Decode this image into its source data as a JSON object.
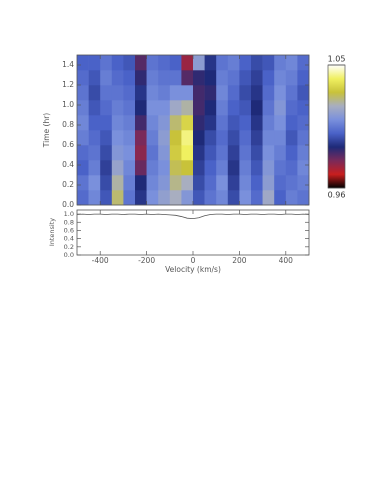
{
  "chart_data": [
    {
      "type": "heatmap",
      "y_label": "Time (hr)",
      "x": [
        -475,
        -425,
        -375,
        -325,
        -275,
        -225,
        -175,
        -125,
        -75,
        -25,
        25,
        75,
        125,
        175,
        225,
        275,
        325,
        375,
        425,
        475
      ],
      "y": [
        0.075,
        0.225,
        0.375,
        0.525,
        0.675,
        0.825,
        0.975,
        1.125,
        1.275,
        1.425
      ],
      "z": [
        [
          1.002,
          1.008,
          0.998,
          1.026,
          1.004,
          0.992,
          1.01,
          1.015,
          1.02,
          1.012,
          0.998,
          1.004,
          1.008,
          0.996,
          1.01,
          1.002,
          1.018,
          1.0,
          1.006,
          1.004
        ],
        [
          1.004,
          1.01,
          0.996,
          1.022,
          1.006,
          0.99,
          1.008,
          1.012,
          1.024,
          1.02,
          0.996,
          1.002,
          1.01,
          0.994,
          1.008,
          1.0,
          1.014,
          1.002,
          1.004,
          1.006
        ],
        [
          1.0,
          1.006,
          0.994,
          1.016,
          1.008,
          0.982,
          1.006,
          1.01,
          1.028,
          1.03,
          0.994,
          1.0,
          1.006,
          0.992,
          1.006,
          0.998,
          1.012,
          1.004,
          1.002,
          1.008
        ],
        [
          1.002,
          1.004,
          0.996,
          1.012,
          1.01,
          0.978,
          1.004,
          1.012,
          1.032,
          1.04,
          0.992,
          0.998,
          1.004,
          0.994,
          1.004,
          0.996,
          1.01,
          1.006,
          1.0,
          1.006
        ],
        [
          1.006,
          1.002,
          0.998,
          1.01,
          1.008,
          0.98,
          1.006,
          1.014,
          1.03,
          1.042,
          0.99,
          0.996,
          1.002,
          0.996,
          1.002,
          0.994,
          1.008,
          1.008,
          0.998,
          1.004
        ],
        [
          1.008,
          1.0,
          1.0,
          1.008,
          1.006,
          0.986,
          1.008,
          1.012,
          1.026,
          1.034,
          0.988,
          0.992,
          1.004,
          0.998,
          1.0,
          0.992,
          1.006,
          1.01,
          1.0,
          1.002
        ],
        [
          1.006,
          0.998,
          1.002,
          1.006,
          1.004,
          0.99,
          1.01,
          1.01,
          1.018,
          1.022,
          0.986,
          0.99,
          1.006,
          1.0,
          0.998,
          0.99,
          1.004,
          1.012,
          1.002,
          1.0
        ],
        [
          1.004,
          0.996,
          1.004,
          1.004,
          1.002,
          0.992,
          1.008,
          1.006,
          1.01,
          1.01,
          0.986,
          0.988,
          1.008,
          1.002,
          0.996,
          0.992,
          1.002,
          1.01,
          1.004,
          0.998
        ],
        [
          1.002,
          0.998,
          1.006,
          1.002,
          1.0,
          0.988,
          1.006,
          1.004,
          1.004,
          0.984,
          0.988,
          0.99,
          1.006,
          1.004,
          0.998,
          0.994,
          1.0,
          1.008,
          1.006,
          1.0
        ],
        [
          1.0,
          1.0,
          1.004,
          1.0,
          0.998,
          0.984,
          1.004,
          1.002,
          1.0,
          0.976,
          1.014,
          0.992,
          1.004,
          1.006,
          1.0,
          0.996,
          0.998,
          1.006,
          1.008,
          1.002
        ]
      ],
      "xlim": [
        -500,
        500
      ],
      "ylim": [
        0,
        1.5
      ],
      "xticks": [
        -400,
        -200,
        0,
        200,
        400
      ],
      "yticks": [
        {
          "value": 0,
          "label": "0.0"
        },
        0.2,
        0.4,
        0.6,
        0.8,
        {
          "value": 1,
          "label": "1.0"
        },
        1.2,
        1.4
      ],
      "zlim": [
        0.96,
        1.05
      ],
      "zticks": [
        0.96,
        1.05
      ],
      "colormap": [
        "#000000",
        "#c81e1e",
        "#7a2a5a",
        "#1e2a78",
        "#4a62c8",
        "#7a90dc",
        "#a8aec0",
        "#c8c23a",
        "#f0f060",
        "#ffffff"
      ]
    },
    {
      "type": "line",
      "x_label": "Velocity (km/s)",
      "y_label": "Intensity",
      "x": [
        -500,
        -475,
        -450,
        -425,
        -400,
        -375,
        -350,
        -325,
        -300,
        -275,
        -250,
        -225,
        -200,
        -175,
        -150,
        -125,
        -100,
        -75,
        -50,
        -25,
        0,
        25,
        50,
        75,
        100,
        125,
        150,
        175,
        200,
        225,
        250,
        275,
        300,
        325,
        350,
        375,
        400,
        425,
        450,
        475,
        500
      ],
      "color": "#555555",
      "values": [
        0.99,
        1.0,
        0.99,
        1.0,
        1.0,
        0.99,
        1.0,
        1.0,
        0.99,
        1.0,
        1.0,
        0.99,
        1.0,
        0.99,
        1.0,
        0.99,
        0.98,
        0.97,
        0.94,
        0.9,
        0.89,
        0.91,
        0.96,
        0.99,
        1.0,
        1.0,
        0.99,
        1.0,
        1.0,
        0.99,
        1.0,
        1.0,
        0.99,
        1.0,
        1.0,
        0.99,
        1.0,
        1.0,
        0.99,
        1.0,
        0.99
      ],
      "xlim": [
        -500,
        500
      ],
      "ylim": [
        0,
        1.1
      ],
      "xticks": [
        -400,
        -200,
        0,
        200,
        400
      ],
      "yticks": [
        {
          "value": 0,
          "label": "0.0"
        },
        0.2,
        0.4,
        0.6,
        0.8,
        {
          "value": 1,
          "label": "1.0"
        }
      ]
    }
  ]
}
